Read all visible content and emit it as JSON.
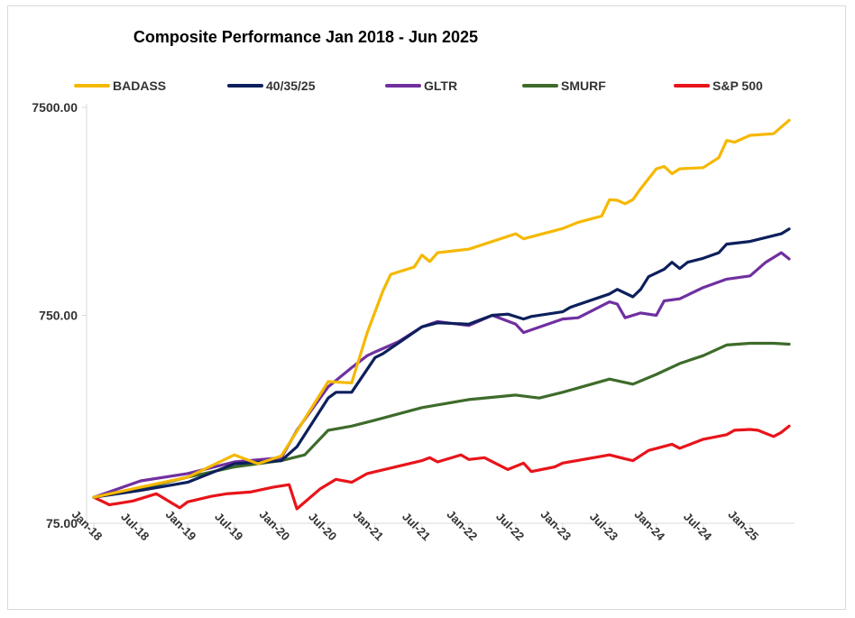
{
  "chart_data": {
    "type": "line",
    "title": "Composite Performance Jan 2018 - Jun 2025",
    "y_scale": "log",
    "ylim": [
      75,
      7500
    ],
    "y_ticks": [
      "7500.00",
      "750.00",
      "75.00"
    ],
    "x_ticks": [
      "Jan-18",
      "Jul-18",
      "Jan-19",
      "Jul-19",
      "Jan-20",
      "Jul-20",
      "Jan-21",
      "Jul-21",
      "Jan-22",
      "Jul-22",
      "Jan-23",
      "Jul-23",
      "Jan-24",
      "Jul-24",
      "Jan-25"
    ],
    "x_start": "Jan-18",
    "x_end": "Jun-25",
    "grid": false,
    "legend_position": "top",
    "series": [
      {
        "name": "BADASS",
        "color": "#f5b800",
        "points": [
          [
            "Jan-18",
            100
          ],
          [
            "Jul-18",
            112
          ],
          [
            "Jan-19",
            125
          ],
          [
            "Jul-19",
            160
          ],
          [
            "Oct-19",
            145
          ],
          [
            "Jan-20",
            158
          ],
          [
            "Jul-20",
            360
          ],
          [
            "Oct-20",
            355
          ],
          [
            "Dec-20",
            620
          ],
          [
            "Feb-21",
            980
          ],
          [
            "Mar-21",
            1180
          ],
          [
            "Jun-21",
            1280
          ],
          [
            "Jul-21",
            1460
          ],
          [
            "Aug-21",
            1360
          ],
          [
            "Sep-21",
            1500
          ],
          [
            "Jan-22",
            1560
          ],
          [
            "Jul-22",
            1850
          ],
          [
            "Aug-22",
            1750
          ],
          [
            "Jan-23",
            1960
          ],
          [
            "Mar-23",
            2100
          ],
          [
            "Jun-23",
            2250
          ],
          [
            "Jul-23",
            2700
          ],
          [
            "Aug-23",
            2680
          ],
          [
            "Sep-23",
            2580
          ],
          [
            "Oct-23",
            2700
          ],
          [
            "Nov-23",
            3050
          ],
          [
            "Jan-24",
            3800
          ],
          [
            "Feb-24",
            3900
          ],
          [
            "Mar-24",
            3600
          ],
          [
            "Apr-24",
            3800
          ],
          [
            "Jul-24",
            3850
          ],
          [
            "Sep-24",
            4300
          ],
          [
            "Oct-24",
            5200
          ],
          [
            "Nov-24",
            5100
          ],
          [
            "Jan-25",
            5500
          ],
          [
            "Apr-25",
            5600
          ],
          [
            "Jun-25",
            6500
          ]
        ]
      },
      {
        "name": "40/35/25",
        "color": "#0d1f5c",
        "points": [
          [
            "Jan-18",
            100
          ],
          [
            "Jul-18",
            108
          ],
          [
            "Jan-19",
            118
          ],
          [
            "Jul-19",
            145
          ],
          [
            "Jan-20",
            150
          ],
          [
            "Mar-20",
            175
          ],
          [
            "Jul-20",
            300
          ],
          [
            "Aug-20",
            320
          ],
          [
            "Oct-20",
            320
          ],
          [
            "Jan-21",
            470
          ],
          [
            "Feb-21",
            490
          ],
          [
            "Jul-21",
            660
          ],
          [
            "Sep-21",
            690
          ],
          [
            "Jan-22",
            680
          ],
          [
            "Apr-22",
            750
          ],
          [
            "Jun-22",
            760
          ],
          [
            "Aug-22",
            720
          ],
          [
            "Sep-22",
            740
          ],
          [
            "Jan-23",
            780
          ],
          [
            "Feb-23",
            820
          ],
          [
            "Jul-23",
            950
          ],
          [
            "Aug-23",
            1000
          ],
          [
            "Oct-23",
            920
          ],
          [
            "Nov-23",
            1000
          ],
          [
            "Dec-23",
            1150
          ],
          [
            "Feb-24",
            1250
          ],
          [
            "Mar-24",
            1350
          ],
          [
            "Apr-24",
            1260
          ],
          [
            "May-24",
            1350
          ],
          [
            "Jul-24",
            1410
          ],
          [
            "Sep-24",
            1500
          ],
          [
            "Oct-24",
            1650
          ],
          [
            "Jan-25",
            1700
          ],
          [
            "May-25",
            1850
          ],
          [
            "Jun-25",
            1950
          ]
        ]
      },
      {
        "name": "GLTR",
        "color": "#7030a0",
        "points": [
          [
            "Jan-18",
            100
          ],
          [
            "Jul-18",
            120
          ],
          [
            "Jan-19",
            130
          ],
          [
            "Jul-19",
            148
          ],
          [
            "Jan-20",
            155
          ],
          [
            "Mar-20",
            210
          ],
          [
            "Jul-20",
            340
          ],
          [
            "Oct-20",
            420
          ],
          [
            "Dec-20",
            480
          ],
          [
            "Jan-21",
            500
          ],
          [
            "Apr-21",
            560
          ],
          [
            "Jul-21",
            660
          ],
          [
            "Sep-21",
            700
          ],
          [
            "Jan-22",
            670
          ],
          [
            "Apr-22",
            750
          ],
          [
            "Jul-22",
            680
          ],
          [
            "Aug-22",
            620
          ],
          [
            "Jan-23",
            720
          ],
          [
            "Mar-23",
            730
          ],
          [
            "Jul-23",
            870
          ],
          [
            "Aug-23",
            850
          ],
          [
            "Sep-23",
            730
          ],
          [
            "Nov-23",
            770
          ],
          [
            "Jan-24",
            750
          ],
          [
            "Feb-24",
            880
          ],
          [
            "Apr-24",
            900
          ],
          [
            "Jul-24",
            1020
          ],
          [
            "Oct-24",
            1120
          ],
          [
            "Jan-25",
            1160
          ],
          [
            "Mar-25",
            1350
          ],
          [
            "May-25",
            1500
          ],
          [
            "Jun-25",
            1400
          ]
        ]
      },
      {
        "name": "SMURF",
        "color": "#3e6b2a",
        "points": [
          [
            "Jan-18",
            100
          ],
          [
            "Jul-18",
            110
          ],
          [
            "Jan-19",
            125
          ],
          [
            "Jul-19",
            140
          ],
          [
            "Jan-20",
            150
          ],
          [
            "Apr-20",
            160
          ],
          [
            "Jul-20",
            210
          ],
          [
            "Oct-20",
            220
          ],
          [
            "Jan-21",
            235
          ],
          [
            "Jul-21",
            270
          ],
          [
            "Jan-22",
            295
          ],
          [
            "Jul-22",
            310
          ],
          [
            "Oct-22",
            300
          ],
          [
            "Jan-23",
            320
          ],
          [
            "Jul-23",
            370
          ],
          [
            "Oct-23",
            350
          ],
          [
            "Jan-24",
            390
          ],
          [
            "Apr-24",
            440
          ],
          [
            "Jul-24",
            480
          ],
          [
            "Oct-24",
            540
          ],
          [
            "Jan-25",
            550
          ],
          [
            "Apr-25",
            550
          ],
          [
            "Jun-25",
            545
          ]
        ]
      },
      {
        "name": "S&P 500",
        "color": "#e8141a",
        "points": [
          [
            "Jan-18",
            100
          ],
          [
            "Mar-18",
            92
          ],
          [
            "Jun-18",
            96
          ],
          [
            "Sep-18",
            104
          ],
          [
            "Dec-18",
            89
          ],
          [
            "Jan-19",
            95
          ],
          [
            "Apr-19",
            101
          ],
          [
            "Jun-19",
            104
          ],
          [
            "Sep-19",
            106
          ],
          [
            "Dec-19",
            112
          ],
          [
            "Feb-20",
            115
          ],
          [
            "Mar-20",
            88
          ],
          [
            "Jun-20",
            110
          ],
          [
            "Aug-20",
            122
          ],
          [
            "Oct-20",
            118
          ],
          [
            "Dec-20",
            130
          ],
          [
            "Jul-21",
            150
          ],
          [
            "Aug-21",
            155
          ],
          [
            "Sep-21",
            148
          ],
          [
            "Dec-21",
            160
          ],
          [
            "Jan-22",
            152
          ],
          [
            "Mar-22",
            155
          ],
          [
            "Jun-22",
            136
          ],
          [
            "Aug-22",
            146
          ],
          [
            "Sep-22",
            133
          ],
          [
            "Dec-22",
            140
          ],
          [
            "Jan-23",
            146
          ],
          [
            "Jul-23",
            160
          ],
          [
            "Sep-23",
            153
          ],
          [
            "Oct-23",
            150
          ],
          [
            "Dec-23",
            168
          ],
          [
            "Mar-24",
            180
          ],
          [
            "Apr-24",
            172
          ],
          [
            "Jul-24",
            190
          ],
          [
            "Oct-24",
            200
          ],
          [
            "Nov-24",
            210
          ],
          [
            "Jan-25",
            212
          ],
          [
            "Feb-25",
            210
          ],
          [
            "Apr-25",
            196
          ],
          [
            "May-25",
            205
          ],
          [
            "Jun-25",
            220
          ]
        ]
      }
    ]
  }
}
